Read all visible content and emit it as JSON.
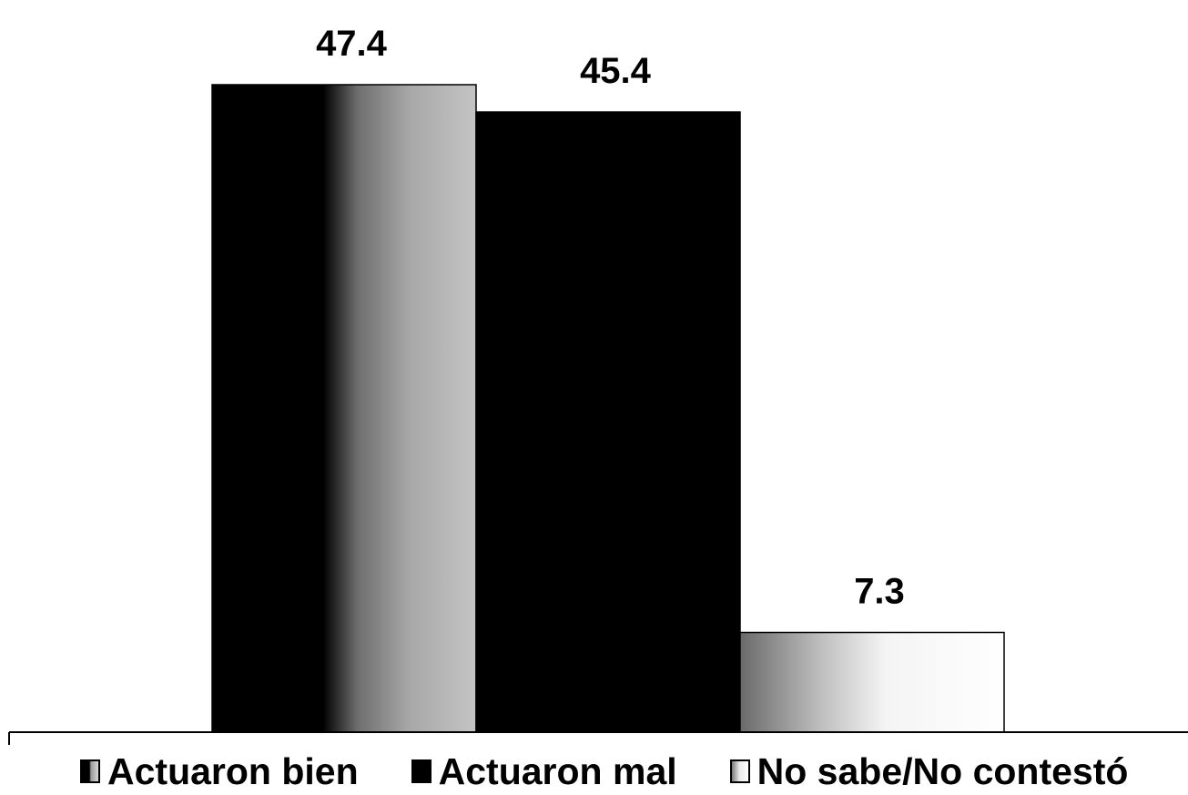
{
  "chart_data": {
    "type": "bar",
    "title": "",
    "xlabel": "",
    "ylabel": "",
    "ylim": [
      0,
      50
    ],
    "grid": false,
    "legend_position": "bottom",
    "categories": [
      "Actuaron bien",
      "Actuaron mal",
      "No sabe/No contestó"
    ],
    "values": [
      47.4,
      45.4,
      7.3
    ],
    "value_labels": [
      "47.4",
      "45.4",
      "7.3"
    ]
  },
  "legend": [
    {
      "label": "Actuaron bien",
      "swatch": "black-to-grey-gradient"
    },
    {
      "label": "Actuaron mal",
      "swatch": "solid-black"
    },
    {
      "label": "No sabe/No contestó",
      "swatch": "grey-to-white-gradient"
    }
  ],
  "colors": {
    "bar_dark": "#000000",
    "bar_mid": "#9a9a9a",
    "bar_light": "#ffffff",
    "baseline": "#000000"
  }
}
